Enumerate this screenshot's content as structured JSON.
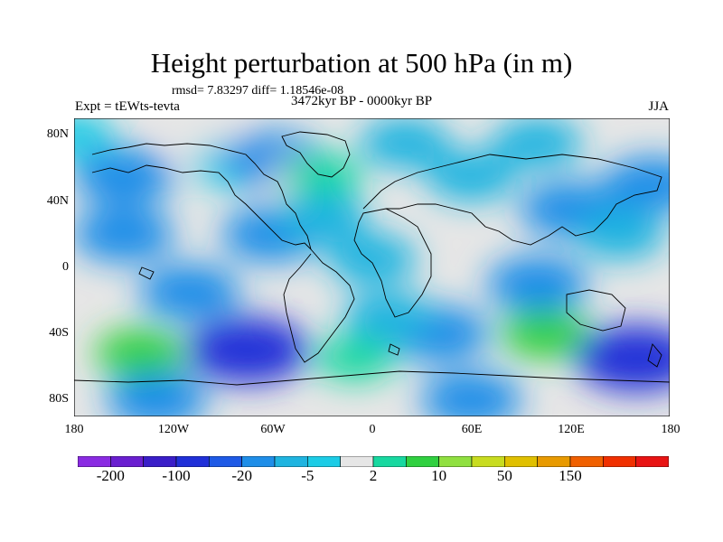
{
  "title": "Height perturbation at 500 hPa (in m)",
  "stats": "rmsd= 7.83297 diff= 1.18546e-08",
  "experiment": "Expt = tEWts-tevta",
  "period": "3472kyr BP - 0000kyr BP",
  "season": "JJA",
  "map": {
    "projection": "cylindrical equidistant",
    "lon_range": [
      -180,
      180
    ],
    "lat_range": [
      -90,
      90
    ],
    "y_ticks": [
      "80N",
      "40N",
      "0",
      "40S",
      "80S"
    ],
    "x_ticks": [
      "180",
      "120W",
      "60W",
      "0",
      "60E",
      "120E",
      "180"
    ],
    "fields": [
      {
        "lon": -180,
        "lat": 80,
        "level": 7
      },
      {
        "lon": -100,
        "lat": 75,
        "level": 8
      },
      {
        "lon": -85,
        "lat": 62,
        "level": 7
      },
      {
        "lon": -60,
        "lat": 65,
        "level": 5
      },
      {
        "lon": -40,
        "lat": 55,
        "level": 8
      },
      {
        "lon": -30,
        "lat": 55,
        "level": 9
      },
      {
        "lon": -150,
        "lat": 55,
        "level": 5
      },
      {
        "lon": 60,
        "lat": 55,
        "level": 6
      },
      {
        "lon": 20,
        "lat": 75,
        "level": 6
      },
      {
        "lon": 100,
        "lat": 75,
        "level": 6
      },
      {
        "lon": 120,
        "lat": 35,
        "level": 5
      },
      {
        "lon": 170,
        "lat": 50,
        "level": 5
      },
      {
        "lon": -150,
        "lat": 20,
        "level": 5
      },
      {
        "lon": -60,
        "lat": 20,
        "level": 5
      },
      {
        "lon": 150,
        "lat": 20,
        "level": 6
      },
      {
        "lon": -140,
        "lat": -52,
        "level": 10
      },
      {
        "lon": -75,
        "lat": -50,
        "level": 3
      },
      {
        "lon": -10,
        "lat": -55,
        "level": 9
      },
      {
        "lon": 105,
        "lat": -40,
        "level": 10
      },
      {
        "lon": 160,
        "lat": -55,
        "level": 3
      },
      {
        "lon": 40,
        "lat": -40,
        "level": 5
      },
      {
        "lon": -110,
        "lat": -15,
        "level": 5
      },
      {
        "lon": 100,
        "lat": -10,
        "level": 5
      },
      {
        "lon": 60,
        "lat": -80,
        "level": 5
      },
      {
        "lon": -130,
        "lat": -80,
        "level": 5
      },
      {
        "lon": 0,
        "lat": 5,
        "level": 6
      },
      {
        "lon": 10,
        "lat": -30,
        "level": 6
      },
      {
        "lon": -30,
        "lat": 30,
        "level": 6
      }
    ]
  },
  "colorbar": {
    "colors": [
      "#8a2be2",
      "#6a1fd0",
      "#3a1ec8",
      "#2030d8",
      "#1e5ae6",
      "#1f8ee8",
      "#1fb4e0",
      "#1ccce6",
      "#e6e6e6",
      "#18d8a0",
      "#30d040",
      "#90e040",
      "#c8dc20",
      "#e0c000",
      "#e89a00",
      "#f06000",
      "#f03000",
      "#e81414"
    ],
    "labels": [
      "-200",
      "-100",
      "-20",
      "-5",
      "2",
      "10",
      "50",
      "150"
    ],
    "label_positions": [
      1,
      3,
      5,
      7,
      9,
      11,
      13,
      15
    ]
  }
}
